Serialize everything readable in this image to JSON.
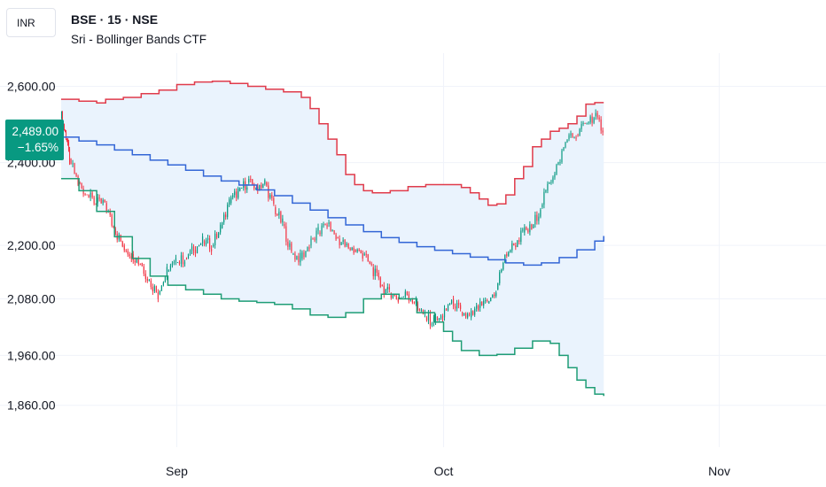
{
  "header": {
    "currency": "INR",
    "symbol_title": "BSE · 15 · NSE",
    "indicator_title": "Sri - Bollinger Bands CTF"
  },
  "last_price": {
    "value": "2,489.00",
    "change": "−1.65%"
  },
  "colors": {
    "upper_band": "#e03b4b",
    "basis": "#3366d6",
    "lower_band": "#1f9d76",
    "band_fill": "#eaf3fd",
    "candle_up": "#089981",
    "candle_down": "#f23645",
    "grid": "#f0f3fa",
    "badge": "#089981"
  },
  "chart_data": {
    "type": "candlestick",
    "y_scale": "log",
    "ylim": [
      1810,
      2660
    ],
    "y_ticks": [
      {
        "value": 2600,
        "label": "2,600.00"
      },
      {
        "value": 2400,
        "label": "2,400.00"
      },
      {
        "value": 2200,
        "label": "2,200.00"
      },
      {
        "value": 2080,
        "label": "2,080.00"
      },
      {
        "value": 1960,
        "label": "1,960.00"
      },
      {
        "value": 1860,
        "label": "1,860.00"
      }
    ],
    "xlim": [
      "2024-08-19",
      "2024-11-12"
    ],
    "x_ticks": [
      {
        "date": "2024-09-01",
        "label": "Sep"
      },
      {
        "date": "2024-10-01",
        "label": "Oct"
      },
      {
        "date": "2024-11-01",
        "label": "Nov"
      }
    ],
    "series": [
      {
        "name": "Upper band",
        "kind": "step",
        "points": [
          [
            "2024-08-19",
            2565
          ],
          [
            "2024-08-21",
            2560
          ],
          [
            "2024-08-23",
            2555
          ],
          [
            "2024-08-24",
            2565
          ],
          [
            "2024-08-26",
            2570
          ],
          [
            "2024-08-28",
            2580
          ],
          [
            "2024-08-30",
            2590
          ],
          [
            "2024-09-01",
            2605
          ],
          [
            "2024-09-03",
            2612
          ],
          [
            "2024-09-05",
            2614
          ],
          [
            "2024-09-07",
            2608
          ],
          [
            "2024-09-09",
            2600
          ],
          [
            "2024-09-11",
            2592
          ],
          [
            "2024-09-13",
            2585
          ],
          [
            "2024-09-15",
            2570
          ],
          [
            "2024-09-16",
            2540
          ],
          [
            "2024-09-17",
            2500
          ],
          [
            "2024-09-18",
            2460
          ],
          [
            "2024-09-19",
            2420
          ],
          [
            "2024-09-20",
            2370
          ],
          [
            "2024-09-21",
            2345
          ],
          [
            "2024-09-22",
            2330
          ],
          [
            "2024-09-23",
            2325
          ],
          [
            "2024-09-25",
            2330
          ],
          [
            "2024-09-27",
            2340
          ],
          [
            "2024-09-29",
            2345
          ],
          [
            "2024-10-01",
            2345
          ],
          [
            "2024-10-03",
            2338
          ],
          [
            "2024-10-04",
            2325
          ],
          [
            "2024-10-05",
            2310
          ],
          [
            "2024-10-06",
            2295
          ],
          [
            "2024-10-07",
            2298
          ],
          [
            "2024-10-08",
            2320
          ],
          [
            "2024-10-09",
            2360
          ],
          [
            "2024-10-10",
            2390
          ],
          [
            "2024-10-11",
            2440
          ],
          [
            "2024-10-12",
            2460
          ],
          [
            "2024-10-13",
            2480
          ],
          [
            "2024-10-14",
            2488
          ],
          [
            "2024-10-15",
            2500
          ],
          [
            "2024-10-16",
            2520
          ],
          [
            "2024-10-17",
            2552
          ],
          [
            "2024-10-18",
            2556
          ],
          [
            "2024-10-19",
            2556
          ]
        ]
      },
      {
        "name": "Basis",
        "kind": "step",
        "points": [
          [
            "2024-08-19",
            2465
          ],
          [
            "2024-08-21",
            2455
          ],
          [
            "2024-08-23",
            2445
          ],
          [
            "2024-08-25",
            2432
          ],
          [
            "2024-08-27",
            2420
          ],
          [
            "2024-08-29",
            2406
          ],
          [
            "2024-08-31",
            2394
          ],
          [
            "2024-09-02",
            2381
          ],
          [
            "2024-09-04",
            2366
          ],
          [
            "2024-09-06",
            2354
          ],
          [
            "2024-09-08",
            2344
          ],
          [
            "2024-09-10",
            2332
          ],
          [
            "2024-09-12",
            2318
          ],
          [
            "2024-09-14",
            2300
          ],
          [
            "2024-09-16",
            2283
          ],
          [
            "2024-09-18",
            2265
          ],
          [
            "2024-09-20",
            2248
          ],
          [
            "2024-09-22",
            2232
          ],
          [
            "2024-09-24",
            2218
          ],
          [
            "2024-09-26",
            2207
          ],
          [
            "2024-09-28",
            2197
          ],
          [
            "2024-09-30",
            2189
          ],
          [
            "2024-10-02",
            2181
          ],
          [
            "2024-10-04",
            2173
          ],
          [
            "2024-10-06",
            2167
          ],
          [
            "2024-10-08",
            2160
          ],
          [
            "2024-10-10",
            2155
          ],
          [
            "2024-10-12",
            2160
          ],
          [
            "2024-10-14",
            2172
          ],
          [
            "2024-10-16",
            2190
          ],
          [
            "2024-10-18",
            2210
          ],
          [
            "2024-10-19",
            2222
          ]
        ]
      },
      {
        "name": "Lower band",
        "kind": "step",
        "points": [
          [
            "2024-08-19",
            2360
          ],
          [
            "2024-08-21",
            2330
          ],
          [
            "2024-08-23",
            2280
          ],
          [
            "2024-08-25",
            2220
          ],
          [
            "2024-08-27",
            2170
          ],
          [
            "2024-08-29",
            2130
          ],
          [
            "2024-08-31",
            2110
          ],
          [
            "2024-09-02",
            2100
          ],
          [
            "2024-09-04",
            2090
          ],
          [
            "2024-09-06",
            2080
          ],
          [
            "2024-09-08",
            2075
          ],
          [
            "2024-09-10",
            2072
          ],
          [
            "2024-09-12",
            2068
          ],
          [
            "2024-09-14",
            2058
          ],
          [
            "2024-09-16",
            2045
          ],
          [
            "2024-09-18",
            2040
          ],
          [
            "2024-09-20",
            2050
          ],
          [
            "2024-09-22",
            2080
          ],
          [
            "2024-09-24",
            2090
          ],
          [
            "2024-09-26",
            2080
          ],
          [
            "2024-09-28",
            2050
          ],
          [
            "2024-09-30",
            2030
          ],
          [
            "2024-10-01",
            2010
          ],
          [
            "2024-10-02",
            1990
          ],
          [
            "2024-10-03",
            1970
          ],
          [
            "2024-10-05",
            1960
          ],
          [
            "2024-10-07",
            1962
          ],
          [
            "2024-10-09",
            1975
          ],
          [
            "2024-10-11",
            1990
          ],
          [
            "2024-10-13",
            1985
          ],
          [
            "2024-10-14",
            1960
          ],
          [
            "2024-10-15",
            1935
          ],
          [
            "2024-10-16",
            1910
          ],
          [
            "2024-10-17",
            1895
          ],
          [
            "2024-10-18",
            1882
          ],
          [
            "2024-10-19",
            1878
          ]
        ]
      },
      {
        "name": "Price",
        "kind": "close",
        "points": [
          [
            "2024-08-19",
            2520
          ],
          [
            "2024-08-19.5",
            2480
          ],
          [
            "2024-08-20",
            2410
          ],
          [
            "2024-08-21",
            2350
          ],
          [
            "2024-08-22",
            2320
          ],
          [
            "2024-08-23",
            2300
          ],
          [
            "2024-08-24",
            2300
          ],
          [
            "2024-08-25",
            2240
          ],
          [
            "2024-08-26",
            2200
          ],
          [
            "2024-08-27",
            2180
          ],
          [
            "2024-08-28",
            2160
          ],
          [
            "2024-08-29",
            2120
          ],
          [
            "2024-08-30",
            2090
          ],
          [
            "2024-08-31",
            2140
          ],
          [
            "2024-09-01",
            2160
          ],
          [
            "2024-09-02",
            2170
          ],
          [
            "2024-09-03",
            2190
          ],
          [
            "2024-09-04",
            2210
          ],
          [
            "2024-09-05",
            2200
          ],
          [
            "2024-09-06",
            2240
          ],
          [
            "2024-09-07",
            2300
          ],
          [
            "2024-09-08",
            2330
          ],
          [
            "2024-09-09",
            2350
          ],
          [
            "2024-09-10",
            2340
          ],
          [
            "2024-09-11",
            2350
          ],
          [
            "2024-09-12",
            2290
          ],
          [
            "2024-09-13",
            2250
          ],
          [
            "2024-09-14",
            2180
          ],
          [
            "2024-09-15",
            2170
          ],
          [
            "2024-09-16",
            2200
          ],
          [
            "2024-09-17",
            2230
          ],
          [
            "2024-09-18",
            2250
          ],
          [
            "2024-09-19",
            2220
          ],
          [
            "2024-09-20",
            2200
          ],
          [
            "2024-09-21",
            2190
          ],
          [
            "2024-09-22",
            2180
          ],
          [
            "2024-09-23",
            2150
          ],
          [
            "2024-09-24",
            2110
          ],
          [
            "2024-09-25",
            2090
          ],
          [
            "2024-09-26",
            2080
          ],
          [
            "2024-09-27",
            2090
          ],
          [
            "2024-09-28",
            2070
          ],
          [
            "2024-09-29",
            2040
          ],
          [
            "2024-09-30",
            2030
          ],
          [
            "2024-10-01",
            2040
          ],
          [
            "2024-10-02",
            2080
          ],
          [
            "2024-10-03",
            2050
          ],
          [
            "2024-10-04",
            2040
          ],
          [
            "2024-10-05",
            2060
          ],
          [
            "2024-10-06",
            2070
          ],
          [
            "2024-10-07",
            2100
          ],
          [
            "2024-10-08",
            2180
          ],
          [
            "2024-10-09",
            2200
          ],
          [
            "2024-10-10",
            2230
          ],
          [
            "2024-10-11",
            2240
          ],
          [
            "2024-10-12",
            2290
          ],
          [
            "2024-10-13",
            2350
          ],
          [
            "2024-10-14",
            2400
          ],
          [
            "2024-10-15",
            2460
          ],
          [
            "2024-10-16",
            2470
          ],
          [
            "2024-10-17",
            2500
          ],
          [
            "2024-10-18",
            2520
          ],
          [
            "2024-10-19",
            2489
          ]
        ]
      }
    ]
  }
}
